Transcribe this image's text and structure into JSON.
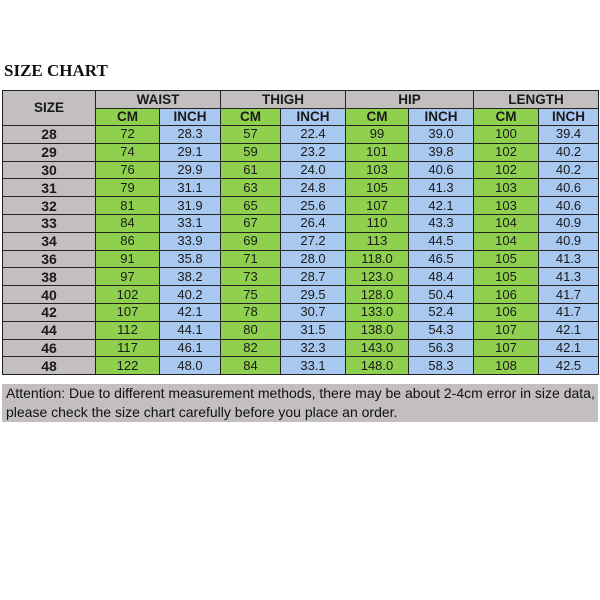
{
  "title": "SIZE CHART",
  "headers": {
    "size": "SIZE",
    "groups": [
      "WAIST",
      "THIGH",
      "HIP",
      "LENGTH"
    ],
    "cm": "CM",
    "inch": "INCH"
  },
  "rows": [
    [
      "28",
      "72",
      "28.3",
      "57",
      "22.4",
      "99",
      "39.0",
      "100",
      "39.4"
    ],
    [
      "29",
      "74",
      "29.1",
      "59",
      "23.2",
      "101",
      "39.8",
      "102",
      "40.2"
    ],
    [
      "30",
      "76",
      "29.9",
      "61",
      "24.0",
      "103",
      "40.6",
      "102",
      "40.2"
    ],
    [
      "31",
      "79",
      "31.1",
      "63",
      "24.8",
      "105",
      "41.3",
      "103",
      "40.6"
    ],
    [
      "32",
      "81",
      "31.9",
      "65",
      "25.6",
      "107",
      "42.1",
      "103",
      "40.6"
    ],
    [
      "33",
      "84",
      "33.1",
      "67",
      "26.4",
      "110",
      "43.3",
      "104",
      "40.9"
    ],
    [
      "34",
      "86",
      "33.9",
      "69",
      "27.2",
      "113",
      "44.5",
      "104",
      "40.9"
    ],
    [
      "36",
      "91",
      "35.8",
      "71",
      "28.0",
      "118.0",
      "46.5",
      "105",
      "41.3"
    ],
    [
      "38",
      "97",
      "38.2",
      "73",
      "28.7",
      "123.0",
      "48.4",
      "105",
      "41.3"
    ],
    [
      "40",
      "102",
      "40.2",
      "75",
      "29.5",
      "128.0",
      "50.4",
      "106",
      "41.7"
    ],
    [
      "42",
      "107",
      "42.1",
      "78",
      "30.7",
      "133.0",
      "52.4",
      "106",
      "41.7"
    ],
    [
      "44",
      "112",
      "44.1",
      "80",
      "31.5",
      "138.0",
      "54.3",
      "107",
      "42.1"
    ],
    [
      "46",
      "117",
      "46.1",
      "82",
      "32.3",
      "143.0",
      "56.3",
      "107",
      "42.1"
    ],
    [
      "48",
      "122",
      "48.0",
      "84",
      "33.1",
      "148.0",
      "58.3",
      "108",
      "42.5"
    ]
  ],
  "note": "Attention: Due to different measurement methods, there may be about 2-4cm error in size data, please check the size chart carefully before you place an order.",
  "colors": {
    "cm": "#8fd14f",
    "inch": "#a9c8ef",
    "header": "#c3bfbf"
  }
}
